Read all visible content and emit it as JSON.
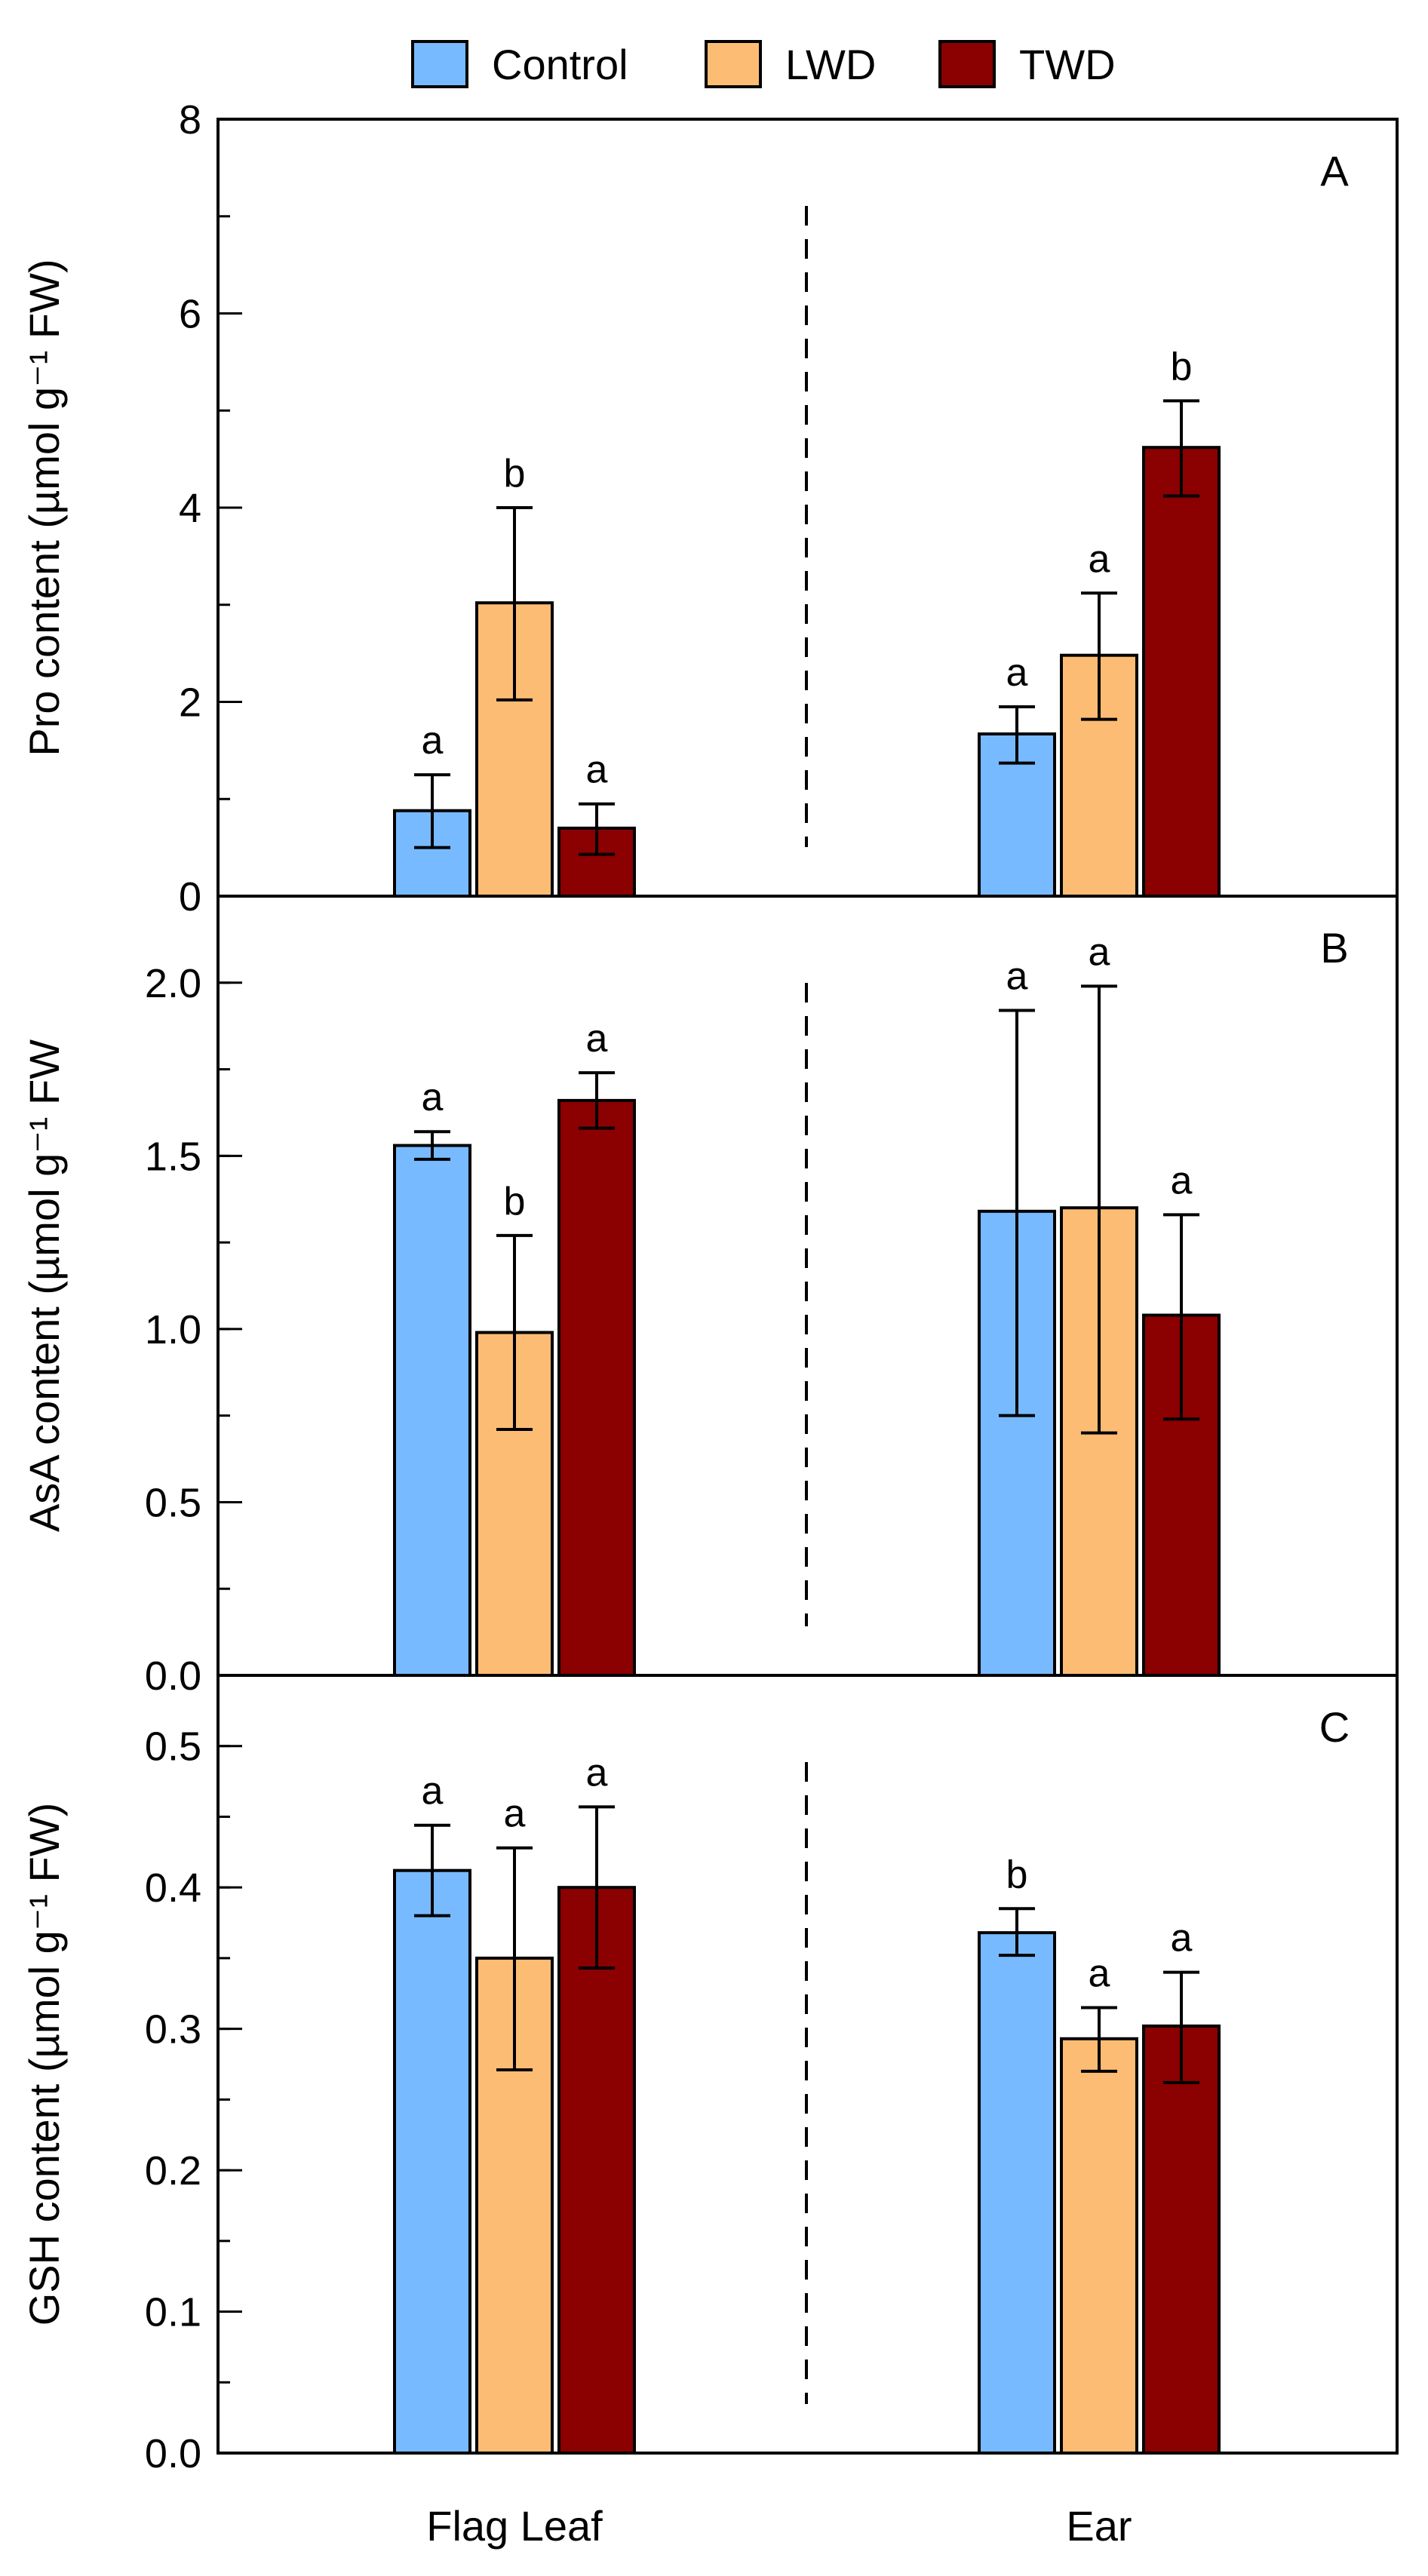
{
  "colors": {
    "Control": "#78baff",
    "LWD": "#fdbc74",
    "TWD": "#8b0000"
  },
  "chart_data": {
    "type": "bar",
    "legend": {
      "placement": "top-center",
      "entries": [
        "Control",
        "LWD",
        "TWD"
      ]
    },
    "categories": [
      "Flag Leaf",
      "Ear"
    ],
    "panels": [
      {
        "label": "A",
        "ylabel": "Pro content (µmol g⁻¹ FW)",
        "ylim": [
          0,
          8
        ],
        "yticks": [
          0,
          2,
          4,
          6,
          8
        ],
        "ytick_labels": [
          "0",
          "2",
          "4",
          "6",
          "8"
        ],
        "minor_step": 1,
        "series": [
          {
            "name": "Control",
            "values": [
              0.88,
              1.67
            ],
            "err_low": [
              0.5,
              1.37
            ],
            "err_high": [
              1.25,
              1.95
            ],
            "letters": [
              "a",
              "a"
            ]
          },
          {
            "name": "LWD",
            "values": [
              3.02,
              2.48
            ],
            "err_low": [
              2.02,
              1.82
            ],
            "err_high": [
              4.0,
              3.12
            ],
            "letters": [
              "b",
              "a"
            ]
          },
          {
            "name": "TWD",
            "values": [
              0.7,
              4.62
            ],
            "err_low": [
              0.43,
              4.12
            ],
            "err_high": [
              0.95,
              5.1
            ],
            "letters": [
              "a",
              "b"
            ]
          }
        ]
      },
      {
        "label": "B",
        "ylabel": "AsA content (µmol g⁻¹ FW",
        "ylim": [
          0,
          2.25
        ],
        "yticks": [
          0,
          0.5,
          1.0,
          1.5,
          2.0
        ],
        "ytick_labels": [
          "0.0",
          "0.5",
          "1.0",
          "1.5",
          "2.0"
        ],
        "minor_step": 0.25,
        "series": [
          {
            "name": "Control",
            "values": [
              1.53,
              1.34
            ],
            "err_low": [
              1.49,
              0.75
            ],
            "err_high": [
              1.57,
              1.92
            ],
            "letters": [
              "a",
              "a"
            ]
          },
          {
            "name": "LWD",
            "values": [
              0.99,
              1.35
            ],
            "err_low": [
              0.71,
              0.7
            ],
            "err_high": [
              1.27,
              1.99
            ],
            "letters": [
              "b",
              "a"
            ]
          },
          {
            "name": "TWD",
            "values": [
              1.66,
              1.04
            ],
            "err_low": [
              1.58,
              0.74
            ],
            "err_high": [
              1.74,
              1.33
            ],
            "letters": [
              "a",
              "a"
            ]
          }
        ]
      },
      {
        "label": "C",
        "ylabel": "GSH content (µmol g⁻¹ FW)",
        "ylim": [
          0,
          0.55
        ],
        "yticks": [
          0,
          0.1,
          0.2,
          0.3,
          0.4,
          0.5
        ],
        "ytick_labels": [
          "0.0",
          "0.1",
          "0.2",
          "0.3",
          "0.4",
          "0.5"
        ],
        "minor_step": 0.05,
        "series": [
          {
            "name": "Control",
            "values": [
              0.412,
              0.368
            ],
            "err_low": [
              0.38,
              0.352
            ],
            "err_high": [
              0.444,
              0.385
            ],
            "letters": [
              "a",
              "b"
            ]
          },
          {
            "name": "LWD",
            "values": [
              0.35,
              0.293
            ],
            "err_low": [
              0.271,
              0.27
            ],
            "err_high": [
              0.428,
              0.315
            ],
            "letters": [
              "a",
              "a"
            ]
          },
          {
            "name": "TWD",
            "values": [
              0.4,
              0.302
            ],
            "err_low": [
              0.343,
              0.262
            ],
            "err_high": [
              0.457,
              0.34
            ],
            "letters": [
              "a",
              "a"
            ]
          }
        ]
      }
    ]
  }
}
